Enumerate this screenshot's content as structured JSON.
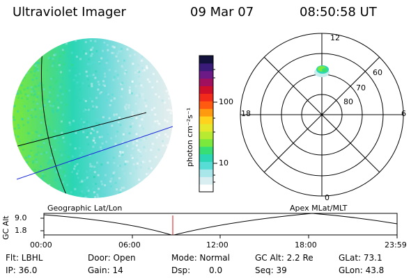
{
  "header": {
    "instrument": "Ultraviolet Imager",
    "date": "09 Mar 07",
    "time": "08:50:58 UT"
  },
  "colorbar": {
    "label": "photon cm⁻²s⁻¹",
    "tick_100": "100",
    "tick_10": "10",
    "colors": [
      "#ffffff",
      "#d8eef0",
      "#a8e6ea",
      "#57dcd6",
      "#2bd6b5",
      "#37de76",
      "#7ae83c",
      "#b8ea32",
      "#e6e82d",
      "#ffd21e",
      "#ff9a10",
      "#ff5a10",
      "#f22a1a",
      "#d0102a",
      "#a0105e",
      "#6b1a86",
      "#3a1b7a",
      "#12123c"
    ]
  },
  "polar": {
    "mlt_top": "12",
    "mlt_left": "18",
    "mlt_right": "6",
    "mlt_bottom": "0",
    "lat_60": "60",
    "lat_70": "70",
    "lat_80": "80"
  },
  "orbit": {
    "y_axis_label": "GC Alt",
    "y_max": "9.0",
    "y_min": "1.8",
    "left_coord_label": "Geographic Lat/Lon",
    "right_coord_label": "Apex MLat/MLT",
    "time_ticks": [
      "00:00",
      "06:00",
      "12:00",
      "18:00",
      "23:59"
    ]
  },
  "status": {
    "filter": "Flt: LBHL",
    "ip": "IP: 36.0",
    "door": "Door: Open",
    "gain": "Gain: 14",
    "mode": "Mode: Normal",
    "dsp_label": "Dsp:",
    "dsp_value": "0.0",
    "gc_alt": "GC Alt: 2.2 Re",
    "seq": "Seq: 39",
    "glat": "GLat: 73.1",
    "glon": "GLon: 43.8"
  }
}
